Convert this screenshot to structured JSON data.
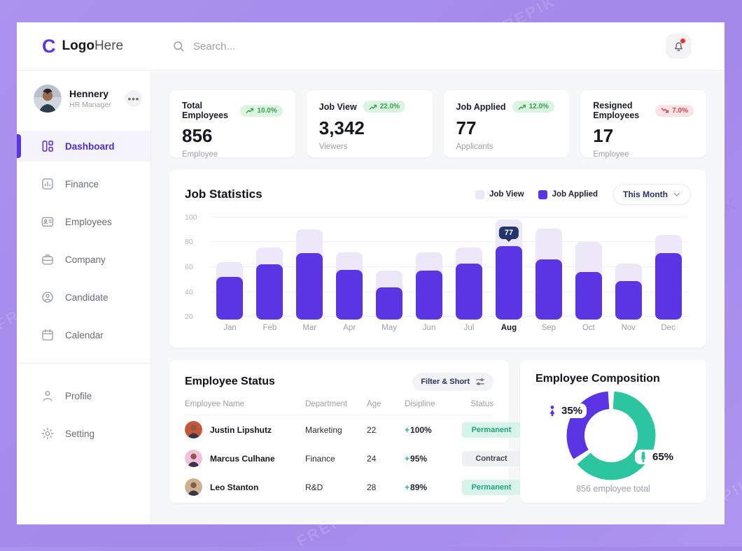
{
  "watermark": "FREPIK",
  "header": {
    "logo_mark": "C",
    "logo_bold": "Logo",
    "logo_light": "Here",
    "search_placeholder": "Search..."
  },
  "sidebar": {
    "user": {
      "name": "Hennery",
      "role": "HR Manager"
    },
    "items": [
      {
        "label": "Dashboard",
        "icon": "dashboard",
        "active": true
      },
      {
        "label": "Finance",
        "icon": "finance",
        "active": false
      },
      {
        "label": "Employees",
        "icon": "employees",
        "active": false
      },
      {
        "label": "Company",
        "icon": "company",
        "active": false
      },
      {
        "label": "Candidate",
        "icon": "candidate",
        "active": false
      },
      {
        "label": "Calendar",
        "icon": "calendar",
        "active": false
      }
    ],
    "footer_items": [
      {
        "label": "Profile",
        "icon": "profile",
        "active": false
      },
      {
        "label": "Setting",
        "icon": "setting",
        "active": false
      }
    ]
  },
  "stats_cards": [
    {
      "title": "Total Employees",
      "trend": "10.0%",
      "direction": "up",
      "value": "856",
      "sublabel": "Employee"
    },
    {
      "title": "Job View",
      "trend": "22.0%",
      "direction": "up",
      "value": "3,342",
      "sublabel": "Viewers"
    },
    {
      "title": "Job Applied",
      "trend": "12.0%",
      "direction": "up",
      "value": "77",
      "sublabel": "Applicants"
    },
    {
      "title": "Resigned Employees",
      "trend": "7.0%",
      "direction": "down",
      "value": "17",
      "sublabel": "Employee"
    }
  ],
  "job_statistics": {
    "title": "Job Statistics",
    "period_selector": "This Month",
    "tooltip": {
      "month": "Aug",
      "value": "77"
    },
    "chart_data": {
      "type": "bar",
      "categories": [
        "Jan",
        "Feb",
        "Mar",
        "Apr",
        "May",
        "Jun",
        "Jul",
        "Aug",
        "Sep",
        "Oct",
        "Nov",
        "Dec"
      ],
      "series": [
        {
          "name": "Job View",
          "color": "#ECE8FA",
          "values": [
            64,
            76,
            90,
            72,
            57,
            72,
            76,
            98,
            91,
            80,
            63,
            86
          ]
        },
        {
          "name": "Job Applied",
          "color": "#5B34E4",
          "values": [
            52,
            62,
            71,
            58,
            44,
            57,
            63,
            77,
            66,
            56,
            49,
            71
          ]
        }
      ],
      "yticks": [
        20,
        40,
        60,
        80,
        100
      ],
      "ylim": [
        18,
        102
      ],
      "grid": true,
      "legend_position": "top-right",
      "highlighted_category": "Aug"
    }
  },
  "employee_status": {
    "title": "Employee Status",
    "filter_button": "Filter & Short",
    "columns": [
      "Employee Name",
      "Department",
      "Age",
      "Disipline",
      "Status"
    ],
    "rows": [
      {
        "name": "Justin Lipshutz",
        "department": "Marketing",
        "age": "22",
        "disipline_sign": "+",
        "disipline_value": "100%",
        "status": "Permanent",
        "status_type": "permanent",
        "avatar_bg": "#C4573B"
      },
      {
        "name": "Marcus Culhane",
        "department": "Finance",
        "age": "24",
        "disipline_sign": "+",
        "disipline_value": "95%",
        "status": "Contract",
        "status_type": "contract",
        "avatar_bg": "#F2BFDC"
      },
      {
        "name": "Leo Stanton",
        "department": "R&D",
        "age": "28",
        "disipline_sign": "+",
        "disipline_value": "89%",
        "status": "Permanent",
        "status_type": "permanent",
        "avatar_bg": "#CBB290"
      }
    ]
  },
  "employee_composition": {
    "title": "Employee Composition",
    "total_label": "856 employee total",
    "chart_data": {
      "type": "pie",
      "slices": [
        {
          "label": "Female",
          "value": 35,
          "display": "35%",
          "color": "#5B34E4"
        },
        {
          "label": "Male",
          "value": 65,
          "display": "65%",
          "color": "#2BC5A0"
        }
      ]
    }
  },
  "colors": {
    "accent": "#5B34E4",
    "accent_light": "#ECE8FA",
    "teal": "#2BC5A0",
    "navy": "#24356B",
    "positive": "#37A14E",
    "negative": "#D2454E"
  },
  "icons": [
    "search-icon",
    "bell-icon",
    "more-icon",
    "dashboard-icon",
    "finance-icon",
    "employees-icon",
    "company-icon",
    "candidate-icon",
    "calendar-icon",
    "profile-icon",
    "setting-icon",
    "trend-up-icon",
    "trend-down-icon",
    "chevron-down-icon",
    "sliders-icon",
    "female-icon",
    "male-icon"
  ]
}
